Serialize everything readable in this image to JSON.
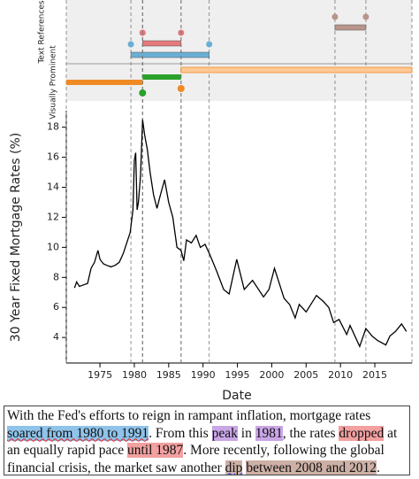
{
  "chart_data": {
    "type": "line",
    "y_label": "30 Year Fixed Mortgage Rates (%)",
    "x_label": "Date",
    "xlim": [
      1970.1,
      2020.4
    ],
    "xticks": [
      1975,
      1980,
      1985,
      1990,
      1995,
      2000,
      2005,
      2010,
      2015
    ],
    "ylim": [
      2.3,
      19.1
    ],
    "yticks": [
      4,
      6,
      8,
      10,
      12,
      14,
      16,
      18
    ],
    "color": "#000000",
    "x": [
      1971.3,
      1971.6,
      1972.0,
      1972.6,
      1973.2,
      1973.7,
      1974.2,
      1974.7,
      1975.0,
      1975.5,
      1976.0,
      1976.6,
      1977.2,
      1977.8,
      1978.4,
      1978.9,
      1979.4,
      1979.8,
      1980.0,
      1980.2,
      1980.4,
      1980.6,
      1980.9,
      1981.2,
      1981.5,
      1981.9,
      1982.3,
      1982.8,
      1983.3,
      1983.8,
      1984.4,
      1985.0,
      1985.6,
      1986.2,
      1986.8,
      1987.2,
      1987.6,
      1988.3,
      1989.0,
      1989.6,
      1990.3,
      1991.0,
      1992.0,
      1993.0,
      1993.8,
      1994.9,
      1996.0,
      1997.2,
      1998.8,
      1999.6,
      2000.4,
      2001.8,
      2002.6,
      2003.4,
      2004.0,
      2005.0,
      2006.5,
      2007.5,
      2008.3,
      2009.0,
      2009.8,
      2010.9,
      2011.4,
      2012.8,
      2013.7,
      2014.6,
      2015.4,
      2016.6,
      2017.2,
      2018.0,
      2018.9,
      2019.6
    ],
    "values": [
      7.3,
      7.7,
      7.4,
      7.5,
      7.6,
      8.6,
      9.0,
      9.8,
      9.2,
      8.9,
      8.8,
      8.7,
      8.8,
      9.0,
      9.6,
      10.3,
      11.0,
      12.5,
      15.8,
      16.3,
      12.5,
      13.0,
      14.8,
      18.5,
      17.5,
      16.5,
      15.0,
      13.5,
      12.6,
      13.5,
      14.5,
      13.0,
      12.0,
      10.0,
      9.8,
      9.1,
      10.5,
      10.3,
      10.8,
      10.0,
      10.2,
      9.5,
      8.4,
      7.2,
      6.9,
      9.2,
      7.2,
      7.8,
      6.7,
      7.2,
      8.6,
      6.6,
      6.2,
      5.3,
      6.2,
      5.7,
      6.8,
      6.4,
      6.0,
      5.0,
      5.2,
      4.2,
      4.8,
      3.4,
      4.6,
      4.1,
      3.8,
      3.5,
      4.1,
      4.4,
      4.9,
      4.4
    ]
  },
  "timeline": {
    "text_references_label": "Text References",
    "visually_prominent_label": "Visually Prominent",
    "text_references": [
      {
        "start": 1979.5,
        "end": 1990.9,
        "color": "#6aaed6"
      },
      {
        "start": 1981.2,
        "end": 1981.2,
        "color": "#b28ad6"
      },
      {
        "start": 1981.2,
        "end": 1986.8,
        "color": "#e6787c"
      },
      {
        "start": 2009.2,
        "end": 2013.7,
        "color": "#b8948a"
      }
    ],
    "visually_prominent": [
      {
        "start": 1970.1,
        "end": 1981.2,
        "color": "#f08a24"
      },
      {
        "start": 1981.2,
        "end": 1986.8,
        "color": "#2ca02c"
      },
      {
        "start": 1986.8,
        "end": 2020.4,
        "color": "#ffc995"
      }
    ]
  },
  "paragraph": {
    "segments": [
      {
        "text": "With the Fed's efforts to reign in rampant inflation, mortgage rates "
      },
      {
        "text": "soared from 1980 to 1991",
        "highlight": "#8fc3ea",
        "underline": "#e02020"
      },
      {
        "text": ". From this "
      },
      {
        "text": "peak",
        "highlight": "#c9a6e6"
      },
      {
        "text": " in "
      },
      {
        "text": "1981",
        "highlight": "#c9a6e6"
      },
      {
        "text": ", the rates "
      },
      {
        "text": "dropped",
        "highlight": "#f2a0a0"
      },
      {
        "text": " at an equally rapid pace "
      },
      {
        "text": "until 1987",
        "highlight": "#f2a0a0"
      },
      {
        "text": ". More recently, following the global financial crisis, the market saw another "
      },
      {
        "text": "dip",
        "highlight": "#cdb0a6",
        "underline": "#2030e0"
      },
      {
        "text": " "
      },
      {
        "text": "between 2008 and 2012",
        "highlight": "#cdb0a6"
      },
      {
        "text": "."
      }
    ]
  }
}
